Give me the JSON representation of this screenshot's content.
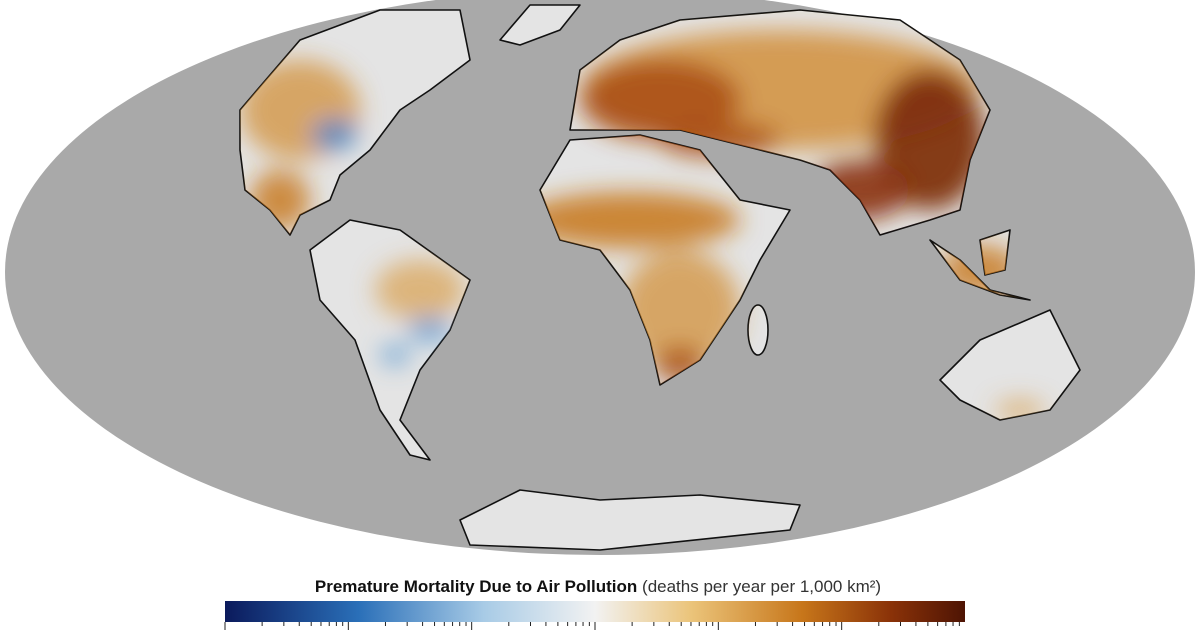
{
  "legend": {
    "title": "Premature Mortality Due to Air Pollution",
    "units": "(deaths per year per 1,000 km²)"
  }
}
